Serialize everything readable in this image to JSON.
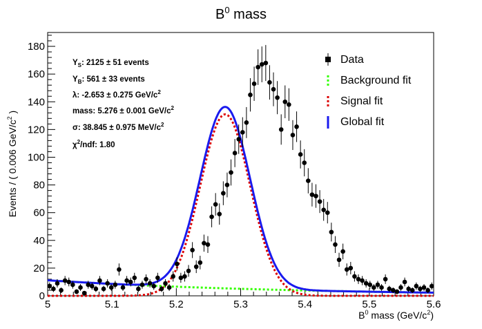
{
  "chart_data": {
    "type": "scatter",
    "title": "B",
    "title_sup": "0",
    "title_rest": " mass",
    "xlabel_pre": "B",
    "xlabel_sup": "0",
    "xlabel_mid": " mass (GeV/c",
    "xlabel_sup2": "2",
    "xlabel_end": ")",
    "ylabel_pre": "Events / ( 0.006 GeV/c",
    "ylabel_sup": "2",
    "ylabel_end": " )",
    "xlim": [
      5.0,
      5.6
    ],
    "ylim": [
      0,
      190
    ],
    "xticks": [
      "5",
      "5.1",
      "5.2",
      "5.3",
      "5.4",
      "5.5",
      "5.6"
    ],
    "yticks": [
      "0",
      "20",
      "40",
      "60",
      "80",
      "100",
      "120",
      "140",
      "160",
      "180"
    ],
    "stats": {
      "ys_label": "Y",
      "ys_sub": "S",
      "ys_val": ": 2125 ± 51 events",
      "yb_label": "Y",
      "yb_sub": "B",
      "yb_val": ": 561 ± 33 events",
      "lambda": "λ: -2.653 ± 0.275 GeV/c",
      "lambda_sup": "2",
      "mass": "mass: 5.276 ± 0.001 GeV/c",
      "mass_sup": "2",
      "sigma": "σ: 38.845 ± 0.975 MeV/c",
      "sigma_sup": "2",
      "chi2": "χ",
      "chi2_sup": "2",
      "chi2_val": "/ndf: 1.80"
    },
    "legend": {
      "data": "Data",
      "background": "Background fit",
      "signal": "Signal fit",
      "global": "Global fit"
    },
    "colors": {
      "data": "#000000",
      "background": "#33ff00",
      "signal": "#dd0000",
      "global": "#1a1aee"
    },
    "fit": {
      "signal_yield": 2125,
      "background_yield": 561,
      "lambda": -2.653,
      "mass": 5.276,
      "sigma_gev": 0.038845,
      "bin_width": 0.006
    },
    "series": [
      {
        "name": "Data",
        "x": [
          5.003,
          5.009,
          5.015,
          5.021,
          5.027,
          5.033,
          5.039,
          5.045,
          5.051,
          5.057,
          5.063,
          5.069,
          5.075,
          5.081,
          5.087,
          5.093,
          5.099,
          5.105,
          5.111,
          5.117,
          5.123,
          5.129,
          5.135,
          5.141,
          5.147,
          5.153,
          5.159,
          5.165,
          5.171,
          5.177,
          5.183,
          5.189,
          5.195,
          5.201,
          5.207,
          5.213,
          5.219,
          5.225,
          5.231,
          5.237,
          5.243,
          5.249,
          5.255,
          5.261,
          5.267,
          5.273,
          5.279,
          5.285,
          5.291,
          5.297,
          5.303,
          5.309,
          5.315,
          5.321,
          5.327,
          5.333,
          5.339,
          5.345,
          5.351,
          5.357,
          5.363,
          5.369,
          5.375,
          5.381,
          5.387,
          5.393,
          5.399,
          5.405,
          5.411,
          5.417,
          5.423,
          5.429,
          5.435,
          5.441,
          5.447,
          5.453,
          5.459,
          5.465,
          5.471,
          5.477,
          5.483,
          5.489,
          5.495,
          5.501,
          5.507,
          5.513,
          5.519,
          5.525,
          5.531,
          5.537,
          5.543,
          5.549,
          5.555,
          5.561,
          5.567,
          5.573,
          5.579,
          5.585,
          5.591,
          5.597
        ],
        "y": [
          7,
          5,
          9,
          4,
          11,
          10,
          8,
          3,
          6,
          2,
          8,
          7,
          5,
          11,
          5,
          9,
          6,
          8,
          19,
          6,
          11,
          10,
          13,
          5,
          8,
          12,
          9,
          7,
          13,
          5,
          9,
          6,
          14,
          23,
          13,
          14,
          18,
          33,
          21,
          24,
          38,
          37,
          57,
          66,
          59,
          74,
          80,
          89,
          103,
          113,
          118,
          125,
          145,
          153,
          165,
          167,
          168,
          154,
          149,
          143,
          120,
          140,
          138,
          116,
          122,
          102,
          96,
          83,
          73,
          72,
          68,
          62,
          60,
          46,
          37,
          26,
          32,
          19,
          20,
          14,
          12,
          11,
          9,
          8,
          6,
          8,
          6,
          12,
          5,
          4,
          3,
          6,
          10,
          5,
          4,
          7,
          5,
          6,
          4,
          7
        ]
      }
    ]
  }
}
